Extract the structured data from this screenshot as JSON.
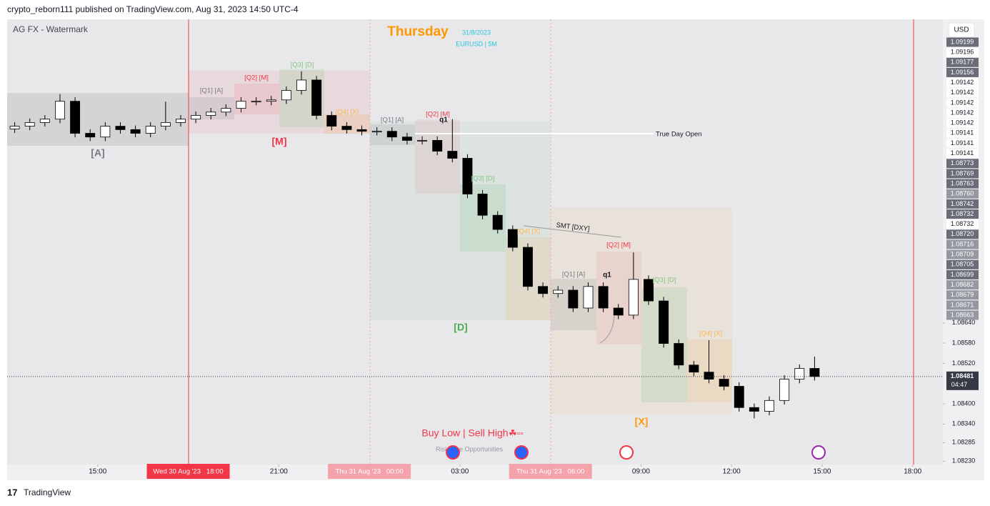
{
  "header": "crypto_reborn111 published on TradingView.com, Aug 31, 2023 14:50 UTC-4",
  "footer": "TradingView",
  "chart_data": {
    "type": "candlestick",
    "currency": "USD",
    "watermark": "AG FX - Watermark",
    "day": "Thursday",
    "date": "31/8/2023",
    "symbol": "EURUSD | 5M",
    "true_day_open": "True Day Open",
    "smt": "SMT [DXY]",
    "motto": "Buy Low | Sell High",
    "motto_icons": "☘▫▫",
    "tagline": "Risks Are Opportunities",
    "session_labels": [
      "[A]",
      "[M]",
      "[D]",
      "[X]"
    ],
    "quarter_labels": [
      "[Q1] [A]",
      "[Q2] [M]",
      "[Q3] [D]",
      "[Q4] [X]",
      "[Q1] [A]",
      "[Q2] [M]",
      "[Q3] [D]",
      "[Q4] [X]",
      "[Q1] [A]",
      "[Q2] [M]",
      "[Q3] [D]",
      "[Q4] [X]"
    ],
    "q_markers": [
      "q1",
      "q1"
    ],
    "up_color": "#ffffff",
    "down_color": "#000000",
    "wick_color": "#000000",
    "xlim": [
      12,
      43
    ],
    "ylim": [
      1.0822,
      1.0954
    ],
    "xticks": [
      {
        "value": 15,
        "label": "15:00"
      },
      {
        "value": 21,
        "label": "21:00"
      },
      {
        "value": 27,
        "label": "03:00"
      },
      {
        "value": 33,
        "label": "09:00"
      },
      {
        "value": 36,
        "label": "12:00"
      },
      {
        "value": 39,
        "label": "15:00"
      },
      {
        "value": 42,
        "label": "18:00"
      }
    ],
    "date_markers": [
      {
        "value": 18,
        "label": "Wed 30 Aug '23   18:00",
        "style": "solid"
      },
      {
        "value": 24,
        "label": "Thu 31 Aug '23   00:00",
        "style": "faded"
      },
      {
        "value": 30,
        "label": "Thu 31 Aug '23   06:00",
        "style": "faded"
      }
    ],
    "yticks": [
      {
        "value": 1.0864,
        "label": "1.08640"
      },
      {
        "value": 1.0858,
        "label": "1.08580"
      },
      {
        "value": 1.0852,
        "label": "1.08520"
      },
      {
        "value": 1.084,
        "label": "1.08400"
      },
      {
        "value": 1.0834,
        "label": "1.08340"
      },
      {
        "value": 1.08285,
        "label": "1.08285"
      },
      {
        "value": 1.0823,
        "label": "1.08230"
      }
    ],
    "indicator_labels": [
      {
        "label": "1.09199",
        "style": "dark"
      },
      {
        "label": "1.09196",
        "style": "light"
      },
      {
        "label": "1.09177",
        "style": "dark"
      },
      {
        "label": "1.09156",
        "style": "dark"
      },
      {
        "label": "1.09142",
        "style": "light"
      },
      {
        "label": "1.09142",
        "style": "light"
      },
      {
        "label": "1.09142",
        "style": "light"
      },
      {
        "label": "1.09142",
        "style": "light"
      },
      {
        "label": "1.09142",
        "style": "light"
      },
      {
        "label": "1.09141",
        "style": "light"
      },
      {
        "label": "1.09141",
        "style": "light"
      },
      {
        "label": "1.09141",
        "style": "light"
      },
      {
        "label": "1.08773",
        "style": "dark"
      },
      {
        "label": "1.08769",
        "style": "dark"
      },
      {
        "label": "1.08763",
        "style": "dark"
      },
      {
        "label": "1.08760",
        "style": "mid"
      },
      {
        "label": "1.08742",
        "style": "dark"
      },
      {
        "label": "1.08732",
        "style": "dark"
      },
      {
        "label": "1.08732",
        "style": "light"
      },
      {
        "label": "1.08720",
        "style": "dark"
      },
      {
        "label": "1.08716",
        "style": "mid"
      },
      {
        "label": "1.08709",
        "style": "mid"
      },
      {
        "label": "1.08705",
        "style": "dark"
      },
      {
        "label": "1.08699",
        "style": "dark"
      },
      {
        "label": "1.08682",
        "style": "mid"
      },
      {
        "label": "1.08679",
        "style": "mid"
      },
      {
        "label": "1.08671",
        "style": "mid"
      },
      {
        "label": "1.08663",
        "style": "mid"
      }
    ],
    "last_price": {
      "value": 1.08481,
      "label": "1.08481"
    },
    "countdown": "04:47",
    "x": [
      12,
      12.5,
      13,
      13.5,
      14,
      14.5,
      15,
      15.5,
      16,
      16.5,
      17,
      17.5,
      18,
      18.5,
      19,
      19.5,
      20,
      20.5,
      21,
      21.5,
      22,
      22.5,
      23,
      23.5,
      24,
      24.5,
      25,
      25.5,
      26,
      26.5,
      27,
      27.5,
      28,
      28.5,
      29,
      29.5,
      30,
      30.5,
      31,
      31.5,
      32,
      32.5,
      33,
      33.5,
      34,
      34.5,
      35,
      35.5,
      36,
      36.5,
      37,
      37.5,
      38,
      38.5
    ],
    "open": [
      1.09215,
      1.09223,
      1.09234,
      1.09244,
      1.09297,
      1.09202,
      1.09191,
      1.09223,
      1.09213,
      1.09202,
      1.09223,
      1.09234,
      1.09244,
      1.09255,
      1.09265,
      1.09276,
      1.09297,
      1.09297,
      1.09301,
      1.09329,
      1.0936,
      1.09255,
      1.09223,
      1.09213,
      1.09208,
      1.09208,
      1.09191,
      1.09181,
      1.09181,
      1.09149,
      1.09128,
      1.09022,
      1.08959,
      1.08917,
      1.08864,
      1.08748,
      1.08727,
      1.08737,
      1.08684,
      1.08748,
      1.08684,
      1.08663,
      1.08769,
      1.08705,
      1.08579,
      1.08515,
      1.08494,
      1.08473,
      1.08452,
      1.08389,
      1.08378,
      1.0841,
      1.08473,
      1.08505
    ],
    "high": [
      1.09235,
      1.09246,
      1.09256,
      1.09318,
      1.09309,
      1.09214,
      1.09235,
      1.09235,
      1.09225,
      1.09235,
      1.09296,
      1.09256,
      1.09267,
      1.09277,
      1.09288,
      1.09309,
      1.09309,
      1.09313,
      1.09341,
      1.09386,
      1.09372,
      1.09267,
      1.09235,
      1.09225,
      1.0922,
      1.0922,
      1.09203,
      1.09193,
      1.09193,
      1.09244,
      1.0914,
      1.09034,
      1.08971,
      1.08929,
      1.08876,
      1.0876,
      1.08749,
      1.08749,
      1.0876,
      1.0876,
      1.08696,
      1.08849,
      1.08781,
      1.08717,
      1.08591,
      1.08527,
      1.08589,
      1.08485,
      1.08464,
      1.08401,
      1.08422,
      1.08485,
      1.08517,
      1.0854
    ],
    "low": [
      1.09203,
      1.09211,
      1.09222,
      1.09232,
      1.0919,
      1.09179,
      1.09179,
      1.09201,
      1.0919,
      1.0919,
      1.09211,
      1.09222,
      1.09232,
      1.09243,
      1.09253,
      1.09264,
      1.09285,
      1.09285,
      1.09289,
      1.09317,
      1.09243,
      1.09211,
      1.09201,
      1.09196,
      1.09196,
      1.09179,
      1.09169,
      1.09169,
      1.09137,
      1.09116,
      1.0901,
      1.08947,
      1.08905,
      1.08852,
      1.08736,
      1.08715,
      1.08715,
      1.08672,
      1.08672,
      1.08672,
      1.08651,
      1.08651,
      1.08693,
      1.08567,
      1.08503,
      1.08482,
      1.08461,
      1.0844,
      1.08377,
      1.08357,
      1.08366,
      1.08398,
      1.08461,
      1.08469
    ],
    "close": [
      1.09223,
      1.09234,
      1.09244,
      1.09297,
      1.09202,
      1.09191,
      1.09223,
      1.09213,
      1.09202,
      1.09223,
      1.09234,
      1.09244,
      1.09255,
      1.09265,
      1.09276,
      1.09297,
      1.09297,
      1.09301,
      1.09329,
      1.0936,
      1.09255,
      1.09223,
      1.09213,
      1.09208,
      1.09208,
      1.09191,
      1.09181,
      1.09181,
      1.09149,
      1.09128,
      1.09022,
      1.08959,
      1.08917,
      1.08864,
      1.08748,
      1.08727,
      1.08737,
      1.08684,
      1.08748,
      1.08684,
      1.08663,
      1.08769,
      1.08705,
      1.08579,
      1.08515,
      1.08494,
      1.08473,
      1.08452,
      1.08389,
      1.08378,
      1.0841,
      1.08473,
      1.08505,
      1.08481
    ]
  }
}
